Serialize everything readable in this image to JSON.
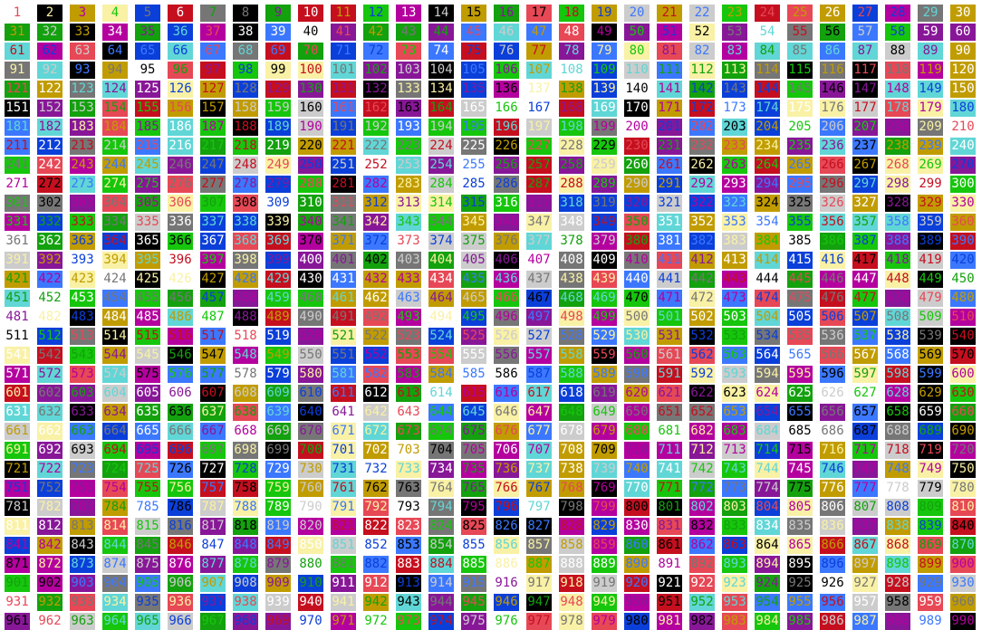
{
  "grid": {
    "count": 990,
    "palette": [
      "#ffffff",
      "#0b3fd9",
      "#13a10e",
      "#c50f1f",
      "#881798",
      "#c19c00",
      "#cccccc",
      "#767676",
      "#3b78ff",
      "#16c60c",
      "#e74856",
      "#b4009e",
      "#f9f1a5",
      "#61d6d6",
      "#000000"
    ]
  }
}
